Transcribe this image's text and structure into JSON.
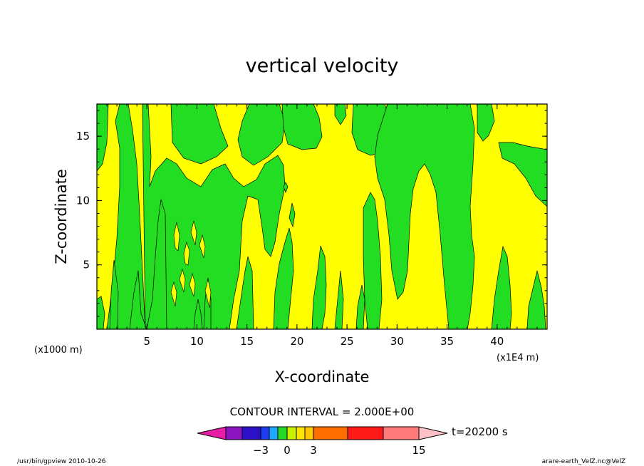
{
  "chart_data": {
    "type": "heatmap",
    "title": "vertical velocity",
    "xlabel": "X-coordinate",
    "ylabel": "Z-coordinate",
    "x_scale_note": "(x1E4 m)",
    "y_scale_note": "(x1000 m)",
    "xlim": [
      0,
      45
    ],
    "ylim": [
      0,
      17.5
    ],
    "x_ticks": [
      5,
      10,
      15,
      20,
      25,
      30,
      35,
      40
    ],
    "y_ticks": [
      5,
      10,
      15
    ],
    "contour_interval_text": "CONTOUR INTERVAL = 2.000E+00",
    "time_label": "t=20200 s",
    "colorbar_labels": [
      {
        "value": -3,
        "text": "−3"
      },
      {
        "value": 0,
        "text": "0"
      },
      {
        "value": 3,
        "text": "3"
      },
      {
        "value": 15,
        "text": "15"
      }
    ],
    "colorbar_colors": [
      "#e51ea5",
      "#8c15c2",
      "#2b10c8",
      "#1f3cf0",
      "#1ea8ff",
      "#28d828",
      "#c8f000",
      "#ffe600",
      "#ffc800",
      "#ff6e00",
      "#ff1a1a",
      "#ff7b7b",
      "#ffc0c8"
    ],
    "region_colors": {
      "positive": "#ffff00",
      "negative": "#22dd22"
    },
    "value_range_shown": [
      -2,
      2
    ],
    "footer_left": "/usr/bin/gpview   2010-10-26",
    "footer_right": "arare-earth_VelZ.nc@VelZ"
  }
}
